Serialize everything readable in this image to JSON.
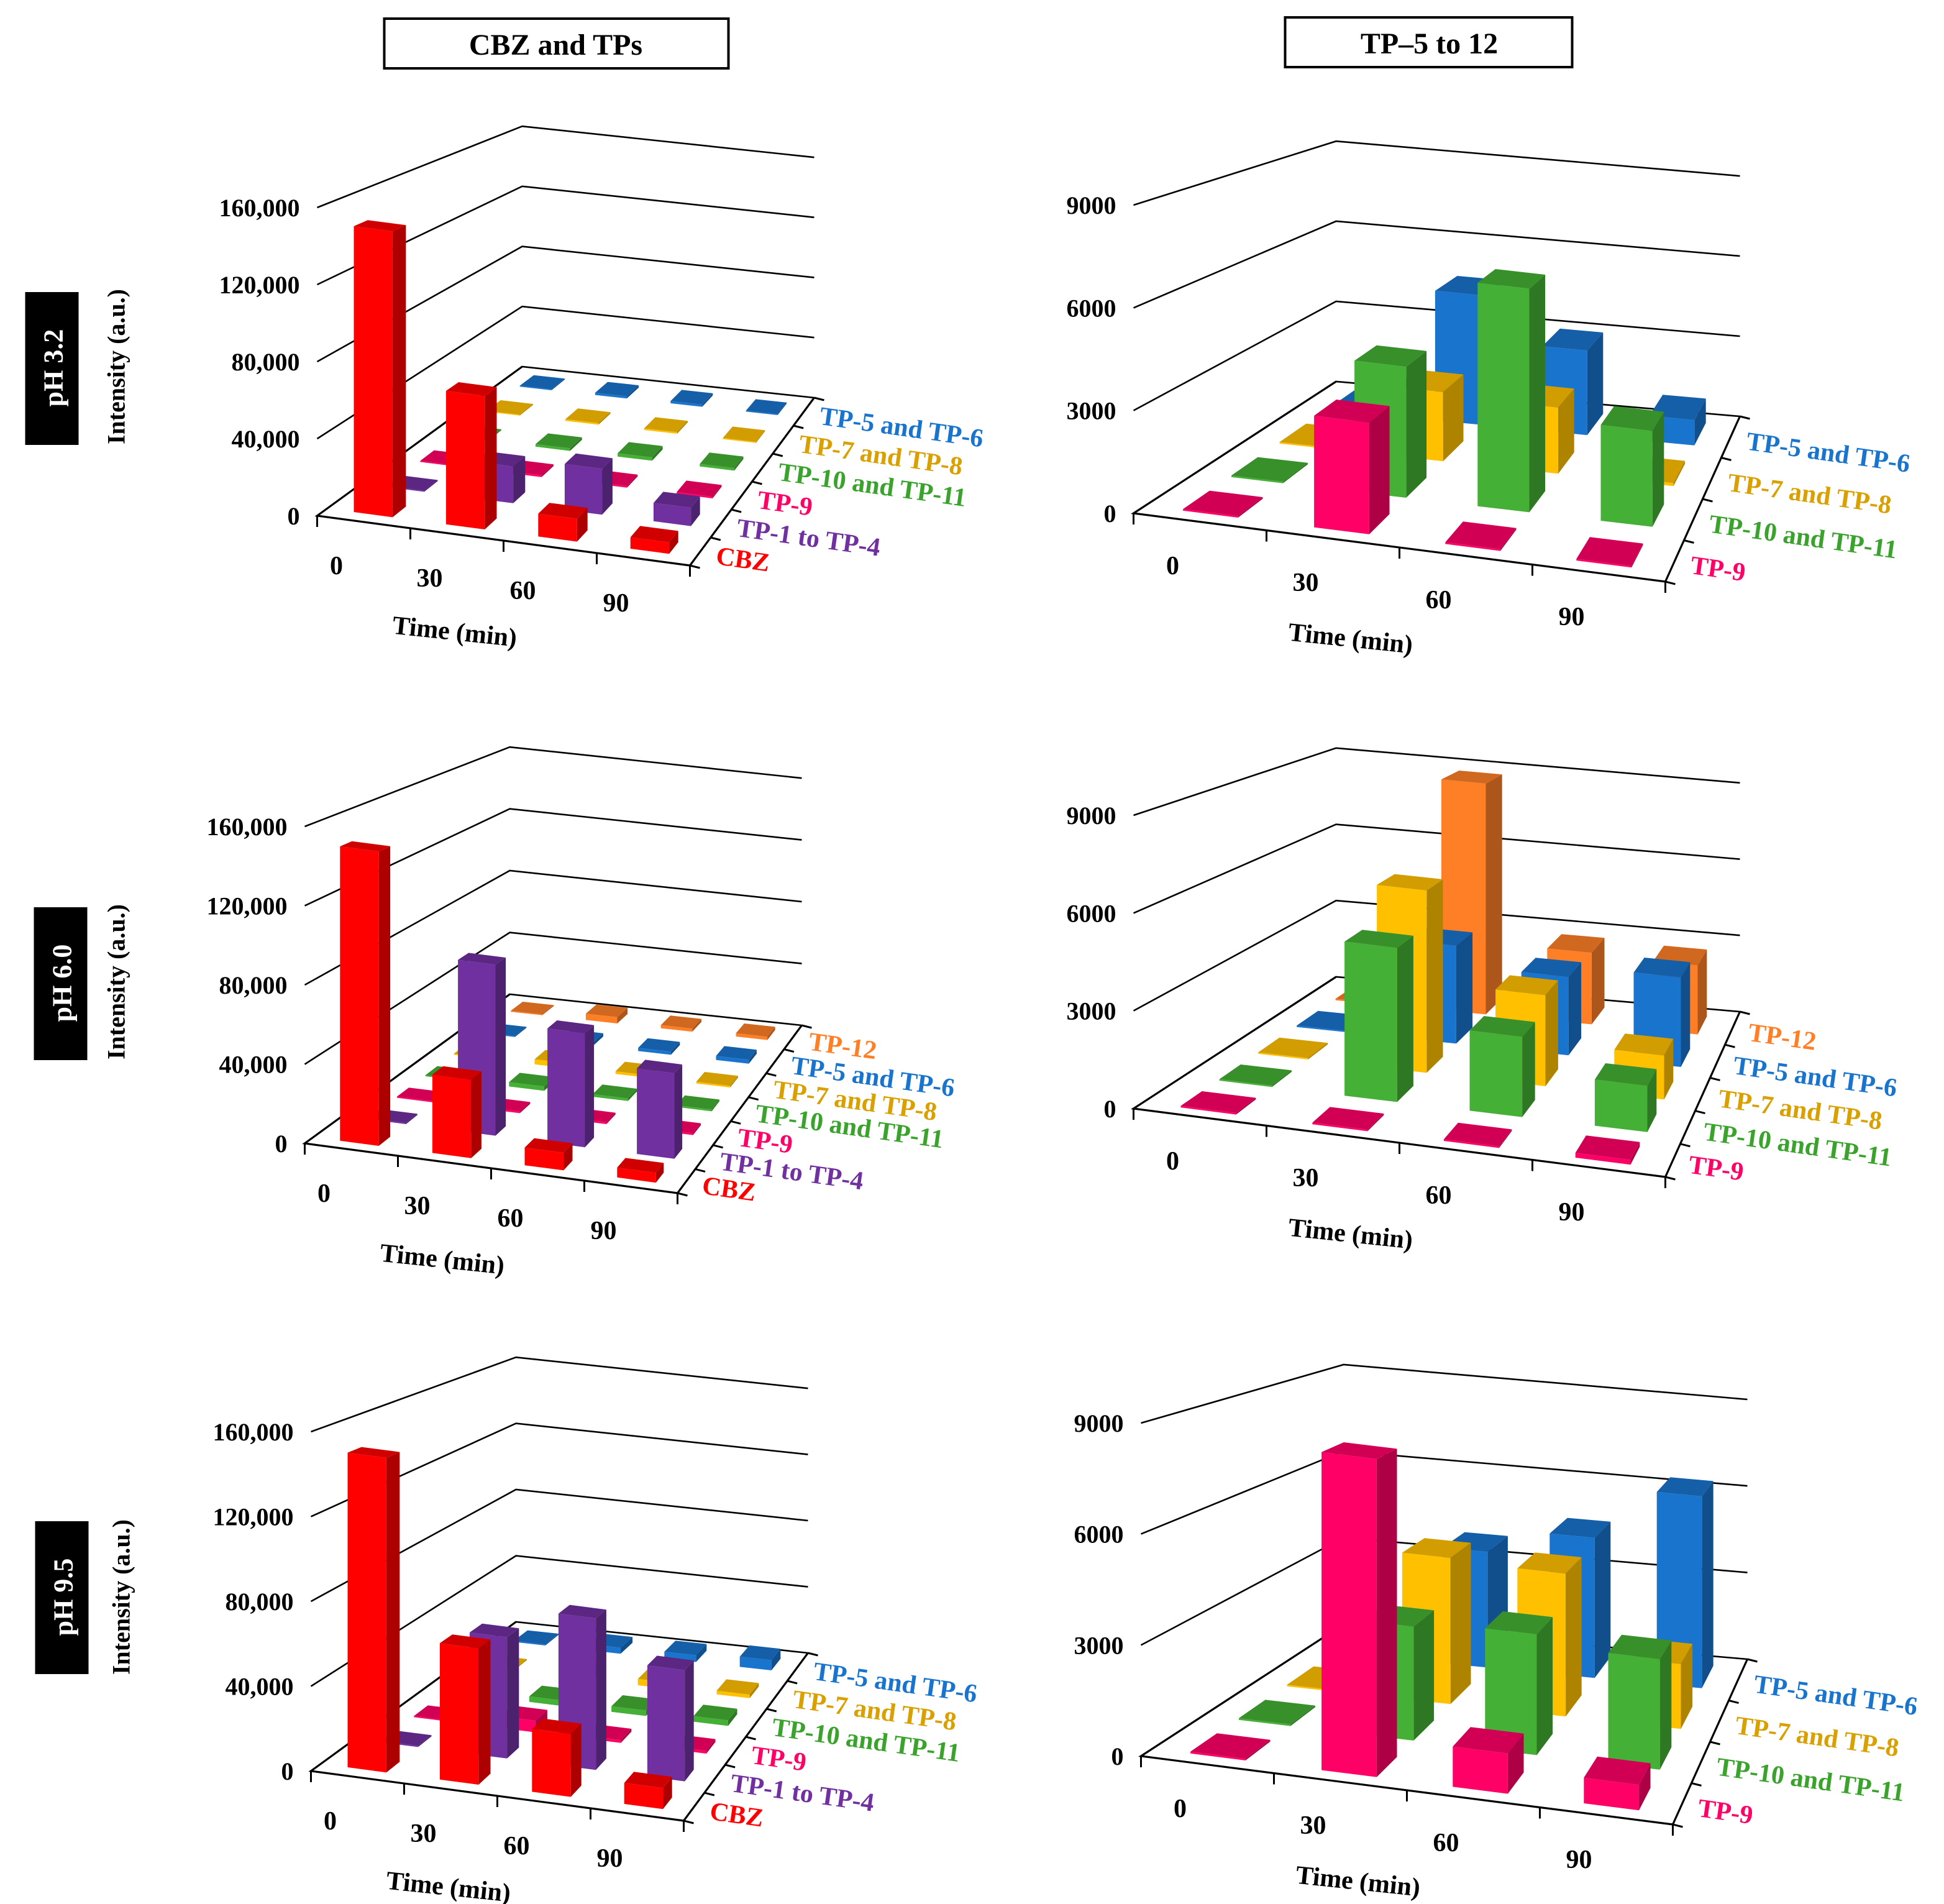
{
  "column_titles": [
    "CBZ and TPs",
    "TP–5 to 12"
  ],
  "row_labels": [
    "pH 3.2",
    "pH 6.0",
    "pH 9.5"
  ],
  "colors": {
    "CBZ": "#ff0000",
    "TP-1 to TP-4": "#7030a0",
    "TP-9": "#ff0066",
    "TP-10 and TP-11": "#44b035",
    "TP-7 and TP-8": "#ffc000",
    "TP-5 and TP-6": "#1874cd",
    "TP-12": "#ff7f27"
  },
  "label_colors": {
    "CBZ": "#ff0000",
    "TP-1 to TP-4": "#7030a0",
    "TP-9": "#ff0066",
    "TP-10 and TP-11": "#3aa32c",
    "TP-7 and TP-8": "#d9a000",
    "TP-5 and TP-6": "#1874cd",
    "TP-12": "#ff7f27"
  },
  "chart_data": [
    {
      "type": "bar3d",
      "panel": "pH 3.2 - CBZ and TPs",
      "xlabel": "Time (min)",
      "ylabel": "Intensity (a.u.)",
      "categories": [
        "0",
        "30",
        "60",
        "90"
      ],
      "ylim": [
        0,
        160000
      ],
      "yticks": [
        0,
        40000,
        80000,
        120000,
        160000
      ],
      "ytick_labels": [
        "0",
        "40,000",
        "80,000",
        "120,000",
        "160,000"
      ],
      "series": [
        {
          "name": "CBZ",
          "values": [
            150000,
            70000,
            12000,
            6000
          ]
        },
        {
          "name": "TP-1 to TP-4",
          "values": [
            500,
            20000,
            25000,
            10000
          ]
        },
        {
          "name": "TP-9",
          "values": [
            500,
            1000,
            1000,
            1000
          ]
        },
        {
          "name": "TP-10 and TP-11",
          "values": [
            500,
            1500,
            2000,
            1500
          ]
        },
        {
          "name": "TP-7 and TP-8",
          "values": [
            500,
            1000,
            1000,
            500
          ]
        },
        {
          "name": "TP-5 and TP-6",
          "values": [
            500,
            1500,
            1500,
            500
          ]
        }
      ]
    },
    {
      "type": "bar3d",
      "panel": "pH 3.2 - TP-5 to 12",
      "xlabel": "Time (min)",
      "ylabel": "",
      "categories": [
        "0",
        "30",
        "60",
        "90"
      ],
      "ylim": [
        0,
        9000
      ],
      "yticks": [
        0,
        3000,
        6000,
        9000
      ],
      "ytick_labels": [
        "0",
        "3000",
        "6000",
        "9000"
      ],
      "series": [
        {
          "name": "TP-9",
          "values": [
            50,
            3300,
            50,
            50
          ]
        },
        {
          "name": "TP-10 and TP-11",
          "values": [
            50,
            4100,
            7000,
            3000
          ]
        },
        {
          "name": "TP-7 and TP-8",
          "values": [
            50,
            2300,
            2200,
            100
          ]
        },
        {
          "name": "TP-5 and TP-6",
          "values": [
            50,
            4600,
            3000,
            900
          ]
        }
      ]
    },
    {
      "type": "bar3d",
      "panel": "pH 6.0 - CBZ and TPs",
      "xlabel": "Time (min)",
      "ylabel": "Intensity (a.u.)",
      "categories": [
        "0",
        "30",
        "60",
        "90"
      ],
      "ylim": [
        0,
        160000
      ],
      "yticks": [
        0,
        40000,
        80000,
        120000,
        160000
      ],
      "ytick_labels": [
        "0",
        "40,000",
        "80,000",
        "120,000",
        "160,000"
      ],
      "series": [
        {
          "name": "CBZ",
          "values": [
            150000,
            40000,
            9000,
            5000
          ]
        },
        {
          "name": "TP-1 to TP-4",
          "values": [
            500,
            90000,
            60000,
            45000
          ]
        },
        {
          "name": "TP-9",
          "values": [
            500,
            1000,
            1000,
            1000
          ]
        },
        {
          "name": "TP-10 and TP-11",
          "values": [
            500,
            2500,
            1500,
            1000
          ]
        },
        {
          "name": "TP-7 and TP-8",
          "values": [
            500,
            3000,
            1500,
            1000
          ]
        },
        {
          "name": "TP-5 and TP-6",
          "values": [
            500,
            2000,
            2000,
            2500
          ]
        },
        {
          "name": "TP-12",
          "values": [
            500,
            4000,
            2000,
            2000
          ]
        }
      ]
    },
    {
      "type": "bar3d",
      "panel": "pH 6.0 - TP-5 to 12",
      "xlabel": "Time (min)",
      "ylabel": "",
      "categories": [
        "0",
        "30",
        "60",
        "90"
      ],
      "ylim": [
        0,
        9000
      ],
      "yticks": [
        0,
        3000,
        6000,
        9000
      ],
      "ytick_labels": [
        "0",
        "3000",
        "6000",
        "9000"
      ],
      "series": [
        {
          "name": "TP-9",
          "values": [
            50,
            50,
            50,
            150
          ]
        },
        {
          "name": "TP-10 and TP-11",
          "values": [
            50,
            5000,
            2600,
            1500
          ]
        },
        {
          "name": "TP-7 and TP-8",
          "values": [
            50,
            6200,
            3100,
            1500
          ]
        },
        {
          "name": "TP-5 and TP-6",
          "values": [
            50,
            3500,
            2800,
            3200
          ]
        },
        {
          "name": "TP-12",
          "values": [
            50,
            8700,
            2700,
            2600
          ]
        }
      ]
    },
    {
      "type": "bar3d",
      "panel": "pH 9.5 - CBZ and TPs",
      "xlabel": "Time (min)",
      "ylabel": "Intensity (a.u.)",
      "categories": [
        "0",
        "30",
        "60",
        "90"
      ],
      "ylim": [
        0,
        160000
      ],
      "yticks": [
        0,
        40000,
        80000,
        120000,
        160000
      ],
      "ytick_labels": [
        "0",
        "40,000",
        "80,000",
        "120,000",
        "160,000"
      ],
      "series": [
        {
          "name": "CBZ",
          "values": [
            150000,
            65000,
            30000,
            10000
          ]
        },
        {
          "name": "TP-1 to TP-4",
          "values": [
            500,
            60000,
            75000,
            55000
          ]
        },
        {
          "name": "TP-9",
          "values": [
            500,
            6000,
            1500,
            1500
          ]
        },
        {
          "name": "TP-10 and TP-11",
          "values": [
            500,
            3000,
            3000,
            3000
          ]
        },
        {
          "name": "TP-7 and TP-8",
          "values": [
            500,
            3500,
            3500,
            2000
          ]
        },
        {
          "name": "TP-5 and TP-6",
          "values": [
            500,
            3500,
            4000,
            6000
          ]
        }
      ]
    },
    {
      "type": "bar3d",
      "panel": "pH 9.5 - TP-5 to 12",
      "xlabel": "Time (min)",
      "ylabel": "",
      "categories": [
        "0",
        "30",
        "60",
        "90"
      ],
      "ylim": [
        0,
        9000
      ],
      "yticks": [
        0,
        3000,
        6000,
        9000
      ],
      "ytick_labels": [
        "0",
        "3000",
        "6000",
        "9000"
      ],
      "series": [
        {
          "name": "TP-9",
          "values": [
            50,
            8700,
            1100,
            700
          ]
        },
        {
          "name": "TP-10 and TP-11",
          "values": [
            50,
            3300,
            3500,
            3200
          ]
        },
        {
          "name": "TP-7 and TP-8",
          "values": [
            50,
            4500,
            4400,
            2000
          ]
        },
        {
          "name": "TP-5 and TP-6",
          "values": [
            50,
            3800,
            4600,
            6300
          ]
        }
      ]
    }
  ]
}
